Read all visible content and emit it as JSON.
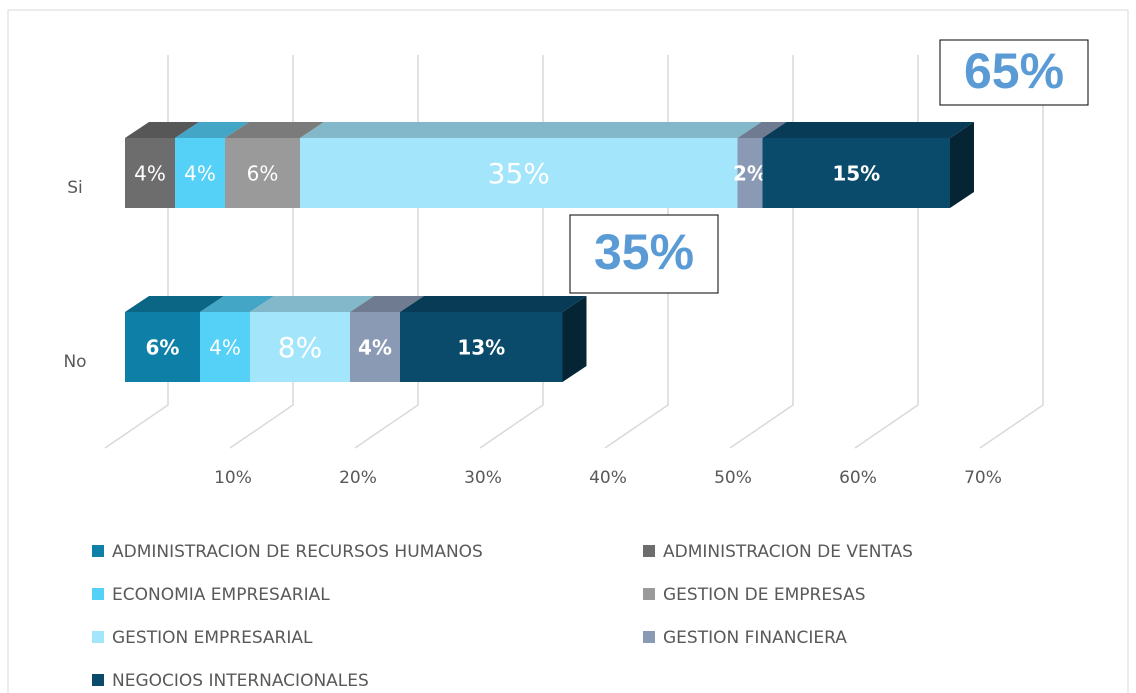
{
  "chart_data": {
    "type": "bar3d-stacked-horizontal",
    "categories": [
      "Si",
      "No"
    ],
    "series": [
      {
        "name": "ADMINISTRACION DE RECURSOS HUMANOS",
        "color": "#0e7fa6",
        "values": [
          null,
          6
        ],
        "value_labels": [
          null,
          "6%"
        ]
      },
      {
        "name": "ADMINISTRACION DE VENTAS",
        "color": "#6d6d6d",
        "values": [
          4,
          null
        ],
        "value_labels": [
          "4%",
          null
        ]
      },
      {
        "name": "ECONOMIA EMPRESARIAL",
        "color": "#55d0f7",
        "values": [
          4,
          4
        ],
        "value_labels": [
          "4%",
          "4%"
        ]
      },
      {
        "name": "GESTION DE EMPRESAS",
        "color": "#9a9a9a",
        "values": [
          6,
          null
        ],
        "value_labels": [
          "6%",
          null
        ]
      },
      {
        "name": "GESTION EMPRESARIAL",
        "color": "#a3e6fb",
        "values": [
          35,
          8
        ],
        "value_labels": [
          "35%",
          "8%"
        ]
      },
      {
        "name": "GESTION FINANCIERA",
        "color": "#8a9ab5",
        "values": [
          2,
          4
        ],
        "value_labels": [
          "2%",
          "4%"
        ]
      },
      {
        "name": "NEGOCIOS INTERNACIONALES",
        "color": "#0a4a6a",
        "values": [
          15,
          13
        ],
        "value_labels": [
          "15%",
          "13%"
        ]
      }
    ],
    "annotations": [
      "65%",
      "35%"
    ],
    "xlim": [
      0,
      70
    ],
    "xticks": [
      {
        "value": 10,
        "label": "10%"
      },
      {
        "value": 20,
        "label": "20%"
      },
      {
        "value": 30,
        "label": "30%"
      },
      {
        "value": 40,
        "label": "40%"
      },
      {
        "value": 50,
        "label": "50%"
      },
      {
        "value": 60,
        "label": "60%"
      },
      {
        "value": 70,
        "label": "70%"
      }
    ],
    "grid": true
  }
}
